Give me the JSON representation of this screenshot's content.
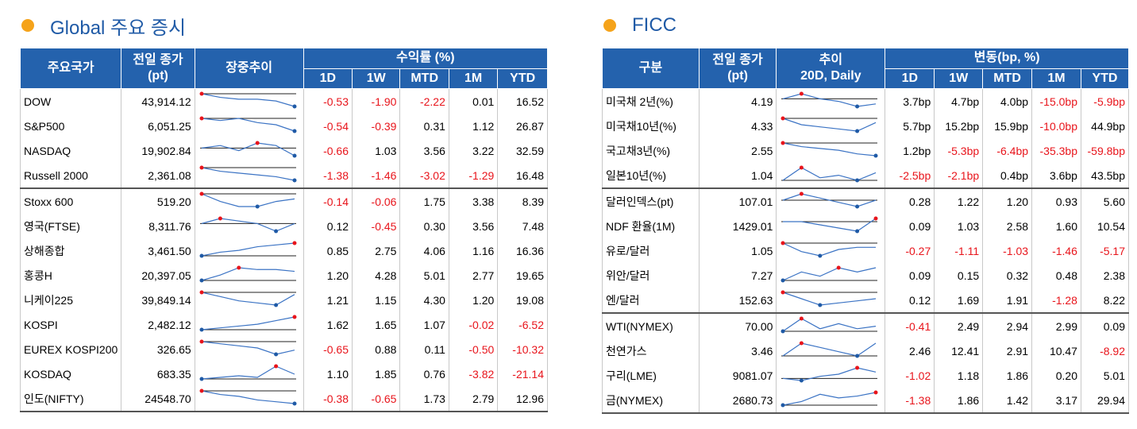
{
  "left": {
    "title": "Global 주요 증시",
    "headers": {
      "name": "주요국가",
      "close": [
        "전일 종가",
        "(pt)"
      ],
      "trend": [
        "장중추이"
      ],
      "group": "수익률 (%)",
      "periods": [
        "1D",
        "1W",
        "MTD",
        "1M",
        "YTD"
      ]
    },
    "groups": [
      [
        {
          "name": "DOW",
          "close": "43,914.12",
          "trend": [
            9,
            7,
            6,
            6,
            5,
            2
          ],
          "values": [
            "-0.53",
            "-1.90",
            "-2.22",
            "0.01",
            "16.52"
          ]
        },
        {
          "name": "S&P500",
          "close": "6,051.25",
          "trend": [
            8,
            7,
            8,
            6,
            5,
            2
          ],
          "values": [
            "-0.54",
            "-0.39",
            "0.31",
            "1.12",
            "26.87"
          ]
        },
        {
          "name": "NASDAQ",
          "close": "19,902.84",
          "trend": [
            5,
            6,
            4,
            7,
            6,
            2
          ],
          "values": [
            "-0.66",
            "1.03",
            "3.56",
            "3.22",
            "32.59"
          ]
        },
        {
          "name": "Russell 2000",
          "close": "2,361.08",
          "trend": [
            9,
            7,
            6,
            5,
            4,
            2
          ],
          "values": [
            "-1.38",
            "-1.46",
            "-3.02",
            "-1.29",
            "16.48"
          ]
        }
      ],
      [
        {
          "name": "Stoxx 600",
          "close": "519.20",
          "trend": [
            7,
            4,
            2,
            2,
            4,
            5
          ],
          "values": [
            "-0.14",
            "-0.06",
            "1.75",
            "3.38",
            "8.39"
          ]
        },
        {
          "name": "영국(FTSE)",
          "close": "8,311.76",
          "trend": [
            5,
            7,
            6,
            5,
            2,
            5
          ],
          "values": [
            "0.12",
            "-0.45",
            "0.30",
            "3.56",
            "7.48"
          ]
        },
        {
          "name": "상해종합",
          "close": "3,461.50",
          "trend": [
            2,
            4,
            5,
            7,
            8,
            9
          ],
          "values": [
            "0.85",
            "2.75",
            "4.06",
            "1.16",
            "16.36"
          ]
        },
        {
          "name": "홍콩H",
          "close": "20,397.05",
          "trend": [
            1,
            4,
            8,
            7,
            7,
            6
          ],
          "values": [
            "1.20",
            "4.28",
            "5.01",
            "2.77",
            "19.65"
          ]
        },
        {
          "name": "니케이225",
          "close": "39,849.14",
          "trend": [
            8,
            6,
            4,
            3,
            2,
            7
          ],
          "values": [
            "1.21",
            "1.15",
            "4.30",
            "1.20",
            "19.08"
          ]
        },
        {
          "name": "KOSPI",
          "close": "2,482.12",
          "trend": [
            2,
            3,
            4,
            5,
            7,
            9
          ],
          "values": [
            "1.62",
            "1.65",
            "1.07",
            "-0.02",
            "-6.52"
          ]
        },
        {
          "name": "EUREX KOSPI200",
          "close": "326.65",
          "trend": [
            8,
            7,
            6,
            5,
            2,
            4
          ],
          "values": [
            "-0.65",
            "0.88",
            "0.11",
            "-0.50",
            "-10.32"
          ]
        },
        {
          "name": "KOSDAQ",
          "close": "683.35",
          "trend": [
            1,
            2,
            3,
            2,
            9,
            4
          ],
          "values": [
            "1.10",
            "1.85",
            "0.76",
            "-3.82",
            "-21.14"
          ]
        },
        {
          "name": "인도(NIFTY)",
          "close": "24548.70",
          "trend": [
            9,
            7,
            6,
            4,
            3,
            2
          ],
          "values": [
            "-0.38",
            "-0.65",
            "1.73",
            "2.79",
            "12.96"
          ]
        }
      ]
    ]
  },
  "right": {
    "title": "FICC",
    "headers": {
      "name": "구분",
      "close": [
        "전일 종가",
        "(pt)"
      ],
      "trend": [
        "추이",
        "20D, Daily"
      ],
      "group": "변동(bp, %)",
      "periods": [
        "1D",
        "1W",
        "MTD",
        "1M",
        "YTD"
      ]
    },
    "groups": [
      [
        {
          "name": "미국채 2년(%)",
          "close": "4.19",
          "trend": [
            6,
            8,
            6,
            5,
            3,
            4
          ],
          "values": [
            "3.7bp",
            "4.7bp",
            "4.0bp",
            "-15.0bp",
            "-5.9bp"
          ]
        },
        {
          "name": "미국채10년(%)",
          "close": "4.33",
          "trend": [
            8,
            5,
            4,
            3,
            2,
            6
          ],
          "values": [
            "5.7bp",
            "15.2bp",
            "15.9bp",
            "-10.0bp",
            "44.9bp"
          ]
        },
        {
          "name": "국고채3년(%)",
          "close": "2.55",
          "trend": [
            9,
            7,
            6,
            5,
            3,
            2
          ],
          "values": [
            "1.2bp",
            "-5.3bp",
            "-6.4bp",
            "-35.3bp",
            "-59.8bp"
          ]
        },
        {
          "name": "일본10년(%)",
          "close": "1.04",
          "trend": [
            3,
            8,
            4,
            5,
            3,
            6
          ],
          "values": [
            "-2.5bp",
            "-2.1bp",
            "0.4bp",
            "3.6bp",
            "43.5bp"
          ]
        }
      ],
      [
        {
          "name": "달러인덱스(pt)",
          "close": "107.01",
          "trend": [
            5,
            8,
            6,
            4,
            2,
            5
          ],
          "values": [
            "0.28",
            "1.22",
            "1.20",
            "0.93",
            "5.60"
          ]
        },
        {
          "name": "NDF 환율(1M)",
          "close": "1429.01",
          "trend": [
            7,
            7,
            6,
            5,
            4,
            8
          ],
          "values": [
            "0.09",
            "1.03",
            "2.58",
            "1.60",
            "10.54"
          ]
        },
        {
          "name": "유로/달러",
          "close": "1.05",
          "trend": [
            8,
            4,
            2,
            5,
            6,
            6
          ],
          "values": [
            "-0.27",
            "-1.11",
            "-1.03",
            "-1.46",
            "-5.17"
          ]
        },
        {
          "name": "위안/달러",
          "close": "7.27",
          "trend": [
            3,
            5,
            4,
            6,
            5,
            6
          ],
          "values": [
            "0.09",
            "0.15",
            "0.32",
            "0.48",
            "2.38"
          ]
        },
        {
          "name": "엔/달러",
          "close": "152.63",
          "trend": [
            8,
            5,
            2,
            3,
            4,
            5
          ],
          "values": [
            "0.12",
            "1.69",
            "1.91",
            "-1.28",
            "8.22"
          ]
        }
      ],
      [
        {
          "name": "WTI(NYMEX)",
          "close": "70.00",
          "trend": [
            3,
            8,
            4,
            6,
            4,
            5
          ],
          "values": [
            "-0.41",
            "2.49",
            "2.94",
            "2.99",
            "0.09"
          ]
        },
        {
          "name": "천연가스",
          "close": "3.46",
          "trend": [
            4,
            7,
            6,
            5,
            4,
            7
          ],
          "values": [
            "2.46",
            "12.41",
            "2.91",
            "10.47",
            "-8.92"
          ]
        },
        {
          "name": "구리(LME)",
          "close": "9081.07",
          "trend": [
            3,
            2,
            4,
            5,
            8,
            6
          ],
          "values": [
            "-1.02",
            "1.18",
            "1.86",
            "0.20",
            "5.01"
          ]
        },
        {
          "name": "금(NYMEX)",
          "close": "2680.73",
          "trend": [
            2,
            4,
            8,
            6,
            7,
            9
          ],
          "values": [
            "-1.38",
            "1.86",
            "1.42",
            "3.17",
            "29.94"
          ]
        }
      ]
    ]
  }
}
